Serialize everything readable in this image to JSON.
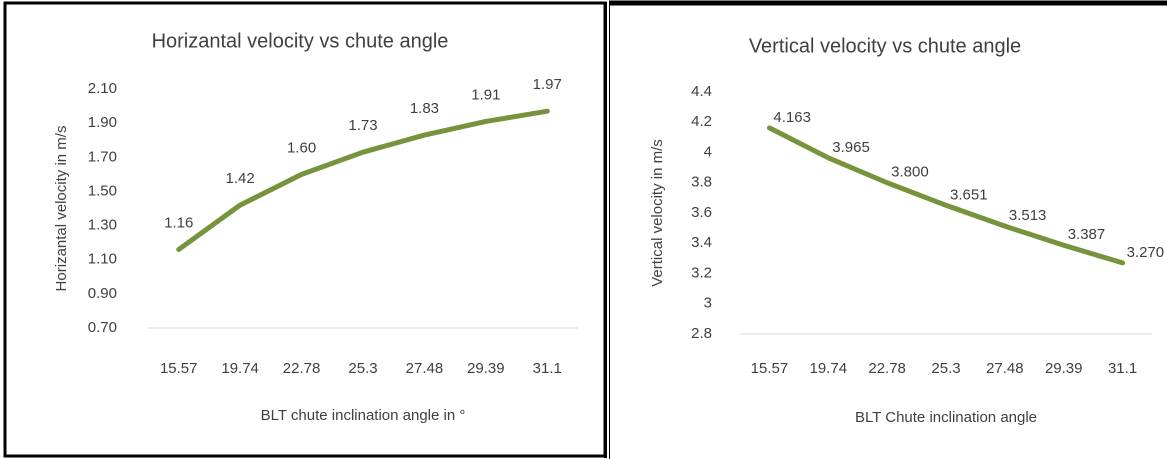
{
  "chart_data": [
    {
      "type": "line",
      "title": "Horizantal velocity vs chute angle",
      "x_label": "BLT chute inclination angle in °",
      "y_label": "Horizantal velocity in m/s",
      "categories": [
        "15.57",
        "19.74",
        "22.78",
        "25.3",
        "27.48",
        "29.39",
        "31.1"
      ],
      "series": [
        {
          "name": "Horizantal velocity",
          "color": "#77933c",
          "values": [
            1.16,
            1.42,
            1.6,
            1.73,
            1.83,
            1.91,
            1.97
          ],
          "value_labels": [
            "1.16",
            "1.42",
            "1.60",
            "1.73",
            "1.83",
            "1.91",
            "1.97"
          ]
        }
      ],
      "ylim": [
        0.7,
        2.1
      ],
      "yticks": [
        {
          "value": 0.7,
          "label": "0.70"
        },
        {
          "value": 0.9,
          "label": "0.90"
        },
        {
          "value": 1.1,
          "label": "1.10"
        },
        {
          "value": 1.3,
          "label": "1.30"
        },
        {
          "value": 1.5,
          "label": "1.50"
        },
        {
          "value": 1.7,
          "label": "1.70"
        },
        {
          "value": 1.9,
          "label": "1.90"
        },
        {
          "value": 2.1,
          "label": "2.10"
        }
      ]
    },
    {
      "type": "line",
      "title": "Vertical velocity vs chute angle",
      "x_label": "BLT Chute inclination angle",
      "y_label": "Vertical velocity in m/s",
      "categories": [
        "15.57",
        "19.74",
        "22.78",
        "25.3",
        "27.48",
        "29.39",
        "31.1"
      ],
      "series": [
        {
          "name": "Vertical velocity",
          "color": "#77933c",
          "values": [
            4.163,
            3.965,
            3.8,
            3.651,
            3.513,
            3.387,
            3.27
          ],
          "value_labels": [
            "4.163",
            "3.965",
            "3.800",
            "3.651",
            "3.513",
            "3.387",
            "3.270"
          ]
        }
      ],
      "ylim": [
        2.8,
        4.4
      ],
      "yticks": [
        {
          "value": 2.8,
          "label": "2.8"
        },
        3,
        3.2,
        3.4,
        3.6,
        3.8,
        4,
        4.2,
        4.4
      ]
    }
  ]
}
